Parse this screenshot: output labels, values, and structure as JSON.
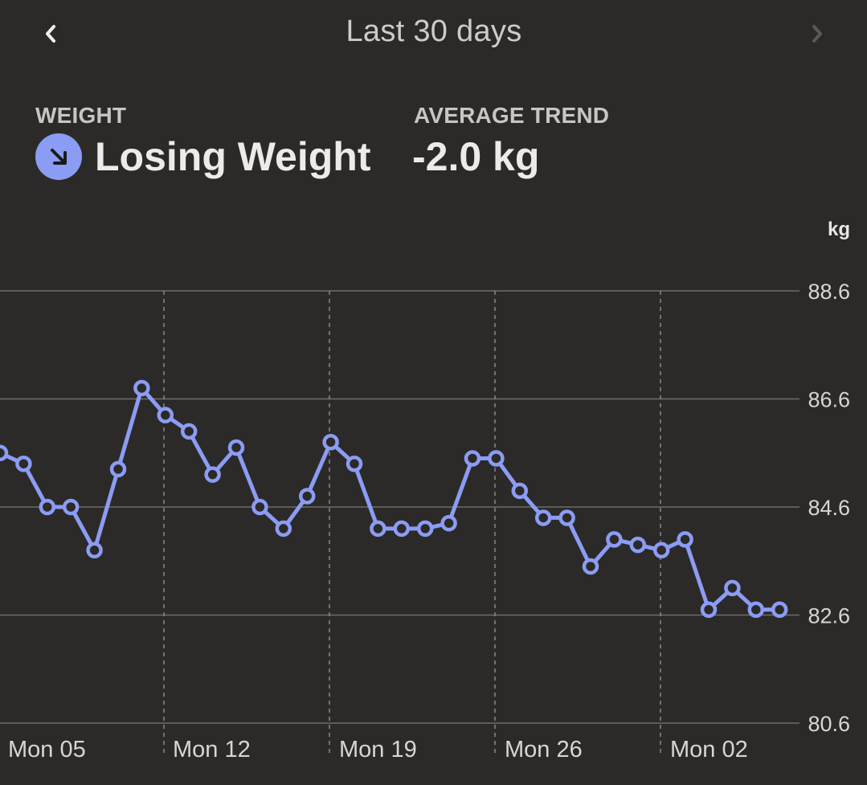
{
  "header": {
    "title": "Last 30 days"
  },
  "icons": {
    "prev": "chevron-left-icon",
    "next": "chevron-right-icon",
    "trend": "arrow-down-right-icon"
  },
  "stats": {
    "weight_label": "WEIGHT",
    "weight_status": "Losing Weight",
    "trend_label": "AVERAGE TREND",
    "trend_value": "-2.0 kg"
  },
  "colors": {
    "background": "#2c2a28",
    "line": "#8b9cf4",
    "trend_icon_bg": "#8b9cf4"
  },
  "chart_data": {
    "type": "line",
    "ylabel": "kg",
    "ylim": [
      80.6,
      88.6
    ],
    "yticks": [
      "88.6",
      "86.6",
      "84.6",
      "82.6",
      "80.6"
    ],
    "xtick_labels": [
      "Mon 05",
      "Mon 12",
      "Mon 19",
      "Mon 26",
      "Mon 02"
    ],
    "series": [
      {
        "values": [
          85.6,
          85.4,
          84.6,
          84.6,
          83.8,
          85.3,
          86.8,
          86.3,
          86.0,
          85.2,
          85.7,
          84.6,
          84.2,
          84.8,
          85.8,
          85.4,
          84.2,
          84.2,
          84.2,
          84.3,
          85.5,
          85.5,
          84.9,
          84.4,
          84.4,
          83.5,
          84.0,
          83.9,
          83.8,
          84.0,
          82.7,
          83.1,
          82.7,
          82.7
        ]
      }
    ],
    "grid": true
  }
}
